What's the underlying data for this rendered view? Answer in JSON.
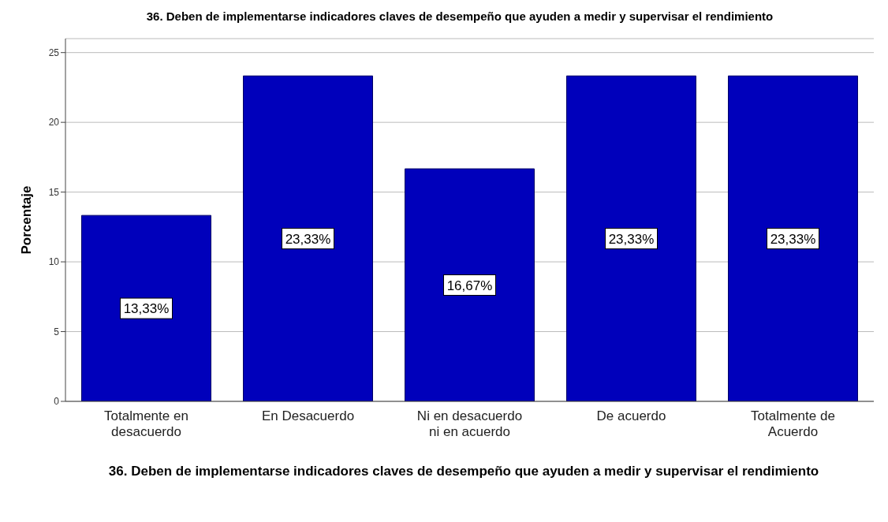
{
  "chart_data": {
    "type": "bar",
    "title": "36. Deben de implementarse indicadores claves de desempeño que ayuden a medir y supervisar el rendimiento",
    "xlabel": "36. Deben de implementarse indicadores claves de desempeño que ayuden a medir y supervisar el rendimiento",
    "ylabel": "Porcentaje",
    "categories": [
      "Totalmente en desacuerdo",
      "En Desacuerdo",
      "Ni en desacuerdo ni en acuerdo",
      "De acuerdo",
      "Totalmente de Acuerdo"
    ],
    "values": [
      13.33,
      23.33,
      16.67,
      23.33,
      23.33
    ],
    "value_labels": [
      "13,33%",
      "23,33%",
      "16,67%",
      "23,33%",
      "23,33%"
    ],
    "color": "#0000bb",
    "ylim": [
      0,
      26
    ],
    "yticks": [
      0,
      5,
      10,
      15,
      20,
      25
    ],
    "grid": "y"
  }
}
